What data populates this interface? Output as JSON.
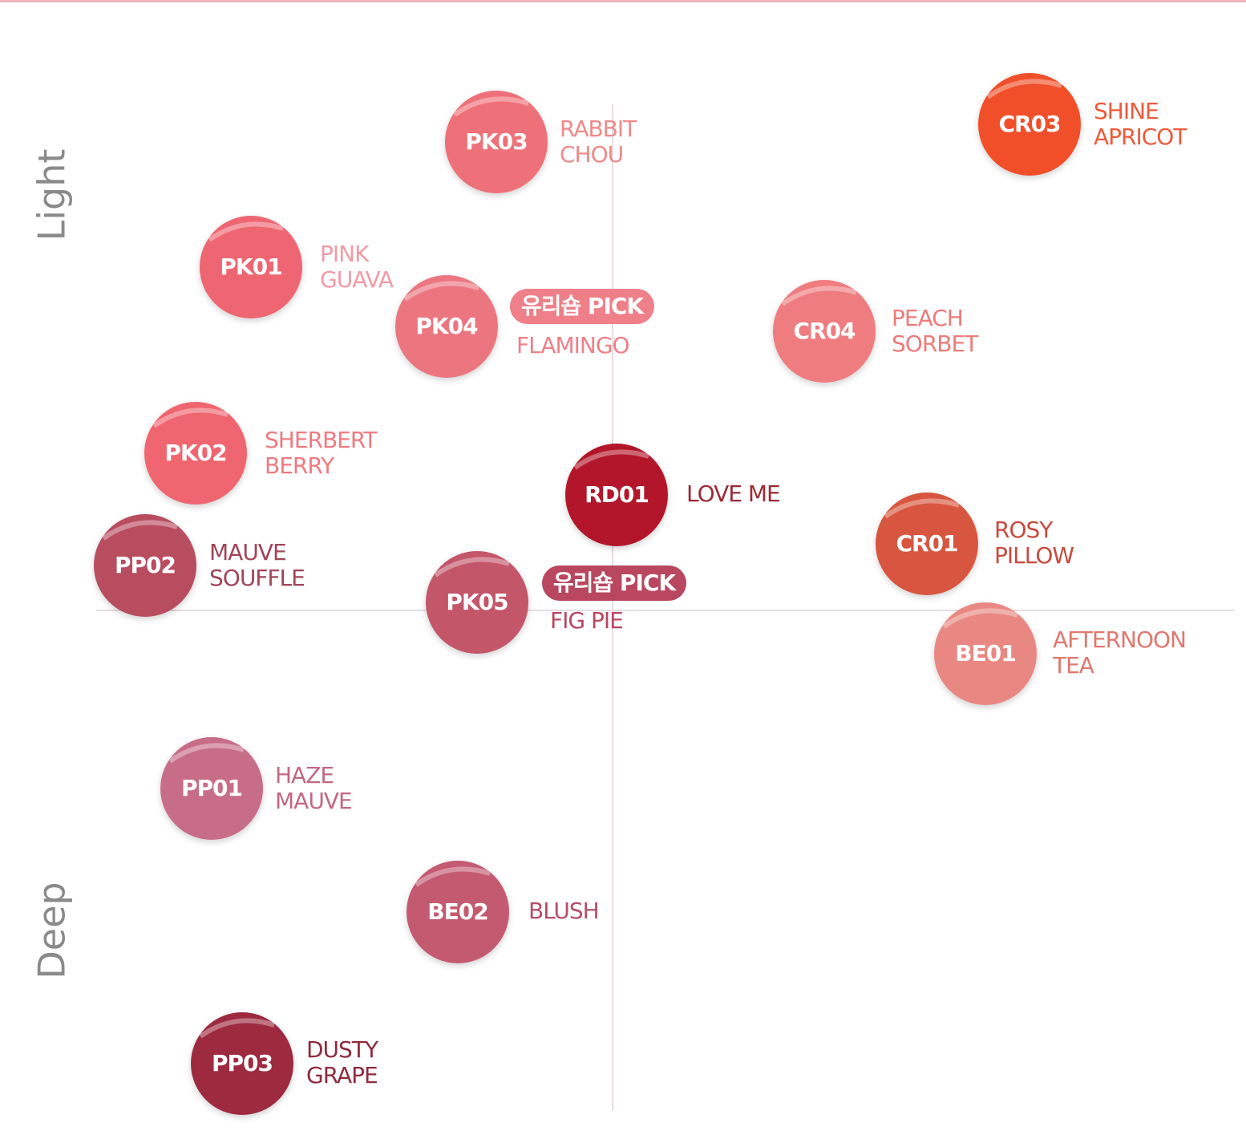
{
  "axis": {
    "top": "Light",
    "bottom": "Deep"
  },
  "nodes": [
    {
      "code": "PK03",
      "name": [
        "RABBIT",
        "CHOU"
      ],
      "color": "#ee6f78",
      "label_color": "#ef8a8a"
    },
    {
      "code": "CR03",
      "name": [
        "SHINE",
        "APRICOT"
      ],
      "color": "#f0502a",
      "label_color": "#ee5a3a"
    },
    {
      "code": "PK01",
      "name": [
        "PINK",
        "GUAVA"
      ],
      "color": "#ee6672",
      "label_color": "#f29aa5"
    },
    {
      "code": "PK04",
      "badge": "유리숍 PICK",
      "name": [
        "FLAMINGO"
      ],
      "color": "#ec7680",
      "label_color": "#ef7f88"
    },
    {
      "code": "CR04",
      "name": [
        "PEACH",
        "SORBET"
      ],
      "color": "#ef7b7f",
      "label_color": "#ee7b79"
    },
    {
      "code": "PK02",
      "name": [
        "SHERBERT",
        "BERRY"
      ],
      "color": "#ef6670",
      "label_color": "#ef7a80"
    },
    {
      "code": "RD01",
      "name": [
        "LOVE ME"
      ],
      "color": "#b3162a",
      "label_color": "#9c2a35"
    },
    {
      "code": "CR01",
      "name": [
        "ROSY",
        "PILLOW"
      ],
      "color": "#d8573f",
      "label_color": "#c94a3e"
    },
    {
      "code": "PP02",
      "name": [
        "MAUVE",
        "SOUFFLE"
      ],
      "color": "#b84d60",
      "label_color": "#a14458"
    },
    {
      "code": "PK05",
      "badge": "유리숍 PICK",
      "name": [
        "FIG PIE"
      ],
      "color": "#c4566a",
      "label_color": "#b94760"
    },
    {
      "code": "BE01",
      "name": [
        "AFTERNOON",
        "TEA"
      ],
      "color": "#e98882",
      "label_color": "#e0786f"
    },
    {
      "code": "PP01",
      "name": [
        "HAZE",
        "MAUVE"
      ],
      "color": "#c86d87",
      "label_color": "#c26883"
    },
    {
      "code": "BE02",
      "name": [
        "BLUSH"
      ],
      "color": "#c45a70",
      "label_color": "#b54e66"
    },
    {
      "code": "PP03",
      "name": [
        "DUSTY",
        "GRAPE"
      ],
      "color": "#9e2b40",
      "label_color": "#8e2b3e"
    }
  ]
}
